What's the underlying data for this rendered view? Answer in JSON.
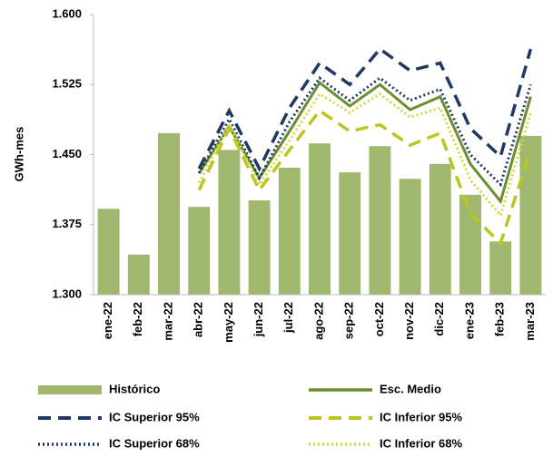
{
  "chart_data": {
    "type": "bar",
    "y_axis_label": "GWh-mes",
    "categories": [
      "ene-22",
      "feb-22",
      "mar-22",
      "abr-22",
      "may-22",
      "jun-22",
      "jul-22",
      "ago-22",
      "sep-22",
      "oct-22",
      "nov-22",
      "dic-22",
      "ene-23",
      "feb-23",
      "mar-23"
    ],
    "ylim": [
      1300,
      1600
    ],
    "yticks": [
      {
        "value": 1300,
        "label": "1.300"
      },
      {
        "value": 1375,
        "label": "1.375"
      },
      {
        "value": 1450,
        "label": "1.450"
      },
      {
        "value": 1525,
        "label": "1.525"
      },
      {
        "value": 1600,
        "label": "1.600"
      }
    ],
    "series": [
      {
        "name": "Histórico",
        "kind": "bar",
        "color": "#9fb86e",
        "values": [
          1392,
          1343,
          1473,
          1394,
          1455,
          1401,
          1436,
          1462,
          1431,
          1459,
          1424,
          1440,
          1407,
          1357,
          1470
        ]
      },
      {
        "name": "Esc. Medio",
        "kind": "line",
        "style": "solid",
        "color": "#6b8e2f",
        "values": [
          null,
          null,
          null,
          1430,
          1480,
          1425,
          1475,
          1527,
          1502,
          1525,
          1498,
          1512,
          1440,
          1400,
          1512
        ]
      },
      {
        "name": "IC Superior 95%",
        "kind": "line",
        "style": "dashed",
        "color": "#1f3864",
        "values": [
          null,
          null,
          null,
          1435,
          1497,
          1435,
          1500,
          1548,
          1525,
          1563,
          1540,
          1548,
          1478,
          1448,
          1563
        ]
      },
      {
        "name": "IC Inferior 95%",
        "kind": "line",
        "style": "dashed",
        "color": "#bcc521",
        "values": [
          null,
          null,
          null,
          1412,
          1478,
          1412,
          1455,
          1497,
          1475,
          1482,
          1460,
          1473,
          1387,
          1355,
          1455
        ]
      },
      {
        "name": "IC Superior 68%",
        "kind": "line",
        "style": "dotted",
        "color": "#1f3864",
        "values": [
          null,
          null,
          null,
          1430,
          1488,
          1425,
          1485,
          1532,
          1508,
          1532,
          1508,
          1520,
          1450,
          1418,
          1525
        ]
      },
      {
        "name": "IC Inferior 68%",
        "kind": "line",
        "style": "dotted",
        "color": "#d4d940",
        "values": [
          null,
          null,
          null,
          1420,
          1483,
          1418,
          1465,
          1515,
          1495,
          1515,
          1490,
          1500,
          1423,
          1385,
          1495
        ]
      }
    ]
  }
}
